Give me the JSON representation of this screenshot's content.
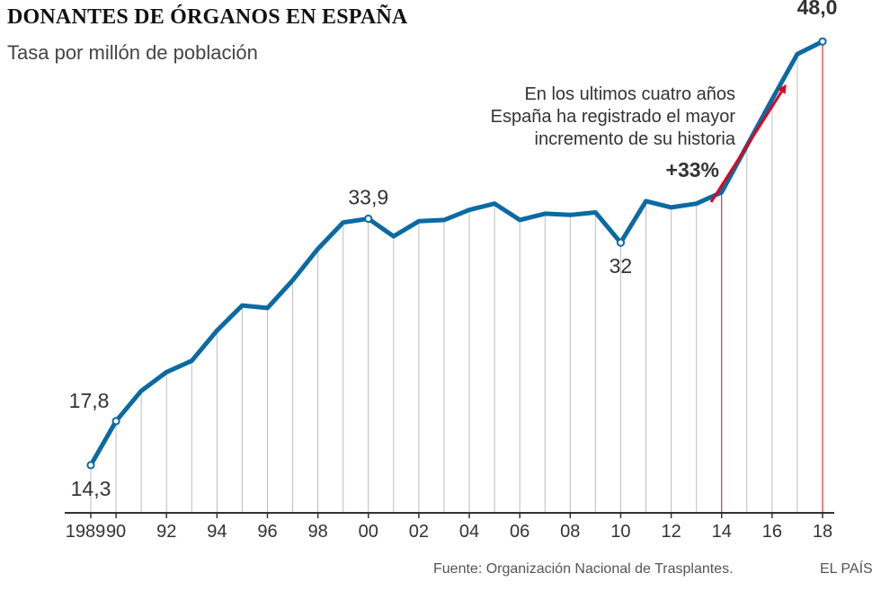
{
  "header": {
    "title": "DONANTES DE ÓRGANOS EN ESPAÑA",
    "subtitle": "Tasa por millón de población"
  },
  "footer": {
    "source": "Fuente: Organización Nacional de Trasplantes.",
    "brand": "EL PAÍS"
  },
  "colors": {
    "line": "#0b6aa2",
    "gridline": "#bdbdbd",
    "highlight": "#e2001a",
    "axis": "#333333"
  },
  "chart_data": {
    "type": "line",
    "title": "DONANTES DE ÓRGANOS EN ESPAÑA",
    "ylabel": "Tasa por millón de población",
    "xlabel": "",
    "x": [
      1989,
      1990,
      1991,
      1992,
      1993,
      1994,
      1995,
      1996,
      1997,
      1998,
      1999,
      2000,
      2001,
      2002,
      2003,
      2004,
      2005,
      2006,
      2007,
      2008,
      2009,
      2010,
      2011,
      2012,
      2013,
      2014,
      2015,
      2016,
      2017,
      2018
    ],
    "values": [
      14.3,
      17.8,
      20.2,
      21.7,
      22.6,
      25.0,
      27.0,
      26.8,
      29.0,
      31.5,
      33.6,
      33.9,
      32.5,
      33.7,
      33.8,
      34.6,
      35.1,
      33.8,
      34.3,
      34.2,
      34.4,
      32.0,
      35.3,
      34.8,
      35.1,
      36.0,
      39.7,
      43.4,
      47.0,
      48.0
    ],
    "xlim": [
      1989,
      2018
    ],
    "ylim": [
      10.5,
      51.3
    ],
    "tick_labels": [
      {
        "x": 1989,
        "label": "1989"
      },
      {
        "x": 1990,
        "label": "90"
      },
      {
        "x": 1992,
        "label": "92"
      },
      {
        "x": 1994,
        "label": "94"
      },
      {
        "x": 1996,
        "label": "96"
      },
      {
        "x": 1998,
        "label": "98"
      },
      {
        "x": 2000,
        "label": "00"
      },
      {
        "x": 2002,
        "label": "02"
      },
      {
        "x": 2004,
        "label": "04"
      },
      {
        "x": 2006,
        "label": "06"
      },
      {
        "x": 2008,
        "label": "08"
      },
      {
        "x": 2010,
        "label": "10"
      },
      {
        "x": 2012,
        "label": "12"
      },
      {
        "x": 2014,
        "label": "14"
      },
      {
        "x": 2016,
        "label": "16"
      },
      {
        "x": 2018,
        "label": "18"
      }
    ],
    "data_labels": [
      {
        "x": 1989,
        "text": "14,3",
        "position": "below"
      },
      {
        "x": 1990,
        "text": "17,8",
        "position": "above-left"
      },
      {
        "x": 2000,
        "text": "33,9",
        "position": "above"
      },
      {
        "x": 2010,
        "text": "32",
        "position": "below"
      },
      {
        "x": 2018,
        "text": "48,0",
        "position": "above",
        "bold": true
      }
    ],
    "highlighted_years": [
      2014,
      2018
    ],
    "annotation": {
      "lines": [
        "En los ultimos cuatro años",
        "España ha registrado el mayor",
        "incremento de su historia"
      ],
      "change": "+33%"
    }
  }
}
